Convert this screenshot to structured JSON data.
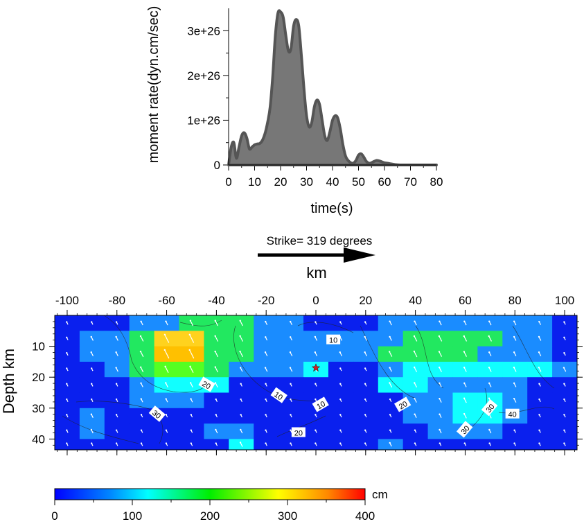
{
  "chart_data": [
    {
      "type": "area",
      "xlabel": "time(s)",
      "ylabel": "moment rate(dyn.cm/sec)",
      "xlim": [
        0,
        80
      ],
      "ylim": [
        0,
        3.5e+26
      ],
      "xticks": [
        "0",
        "10",
        "20",
        "30",
        "40",
        "50",
        "60",
        "70",
        "80"
      ],
      "yticks": [
        "0",
        "1e+26",
        "2e+26",
        "3e+26"
      ],
      "fill_color": "#777777",
      "line_color": "#555555",
      "x": [
        0,
        1,
        2,
        3,
        4,
        5,
        6,
        7,
        8,
        9,
        10,
        11,
        12,
        13,
        14,
        15,
        16,
        17,
        18,
        19,
        20,
        21,
        22,
        23,
        24,
        25,
        26,
        27,
        28,
        29,
        30,
        31,
        32,
        33,
        34,
        35,
        36,
        37,
        38,
        39,
        40,
        41,
        42,
        43,
        44,
        45,
        46,
        47,
        48,
        49,
        50,
        51,
        52,
        53,
        54,
        55,
        56,
        57,
        58,
        59,
        60,
        62,
        64,
        66,
        68,
        70,
        80
      ],
      "y": [
        0,
        4e+25,
        5e+25,
        1.5e+25,
        4e+25,
        6.5e+25,
        7.2e+25,
        6e+25,
        3.6e+25,
        4e+25,
        4.5e+25,
        4.7e+25,
        4.8e+25,
        5.5e+25,
        7e+25,
        9.5e+25,
        1.3e+26,
        2e+26,
        2.9e+26,
        3.4e+26,
        3.42e+26,
        3.3e+26,
        2.9e+26,
        2.55e+26,
        2.6e+26,
        3.1e+26,
        3.25e+26,
        3.1e+26,
        2.45e+26,
        1.7e+26,
        1.1e+26,
        8.5e+25,
        9.5e+25,
        1.3e+26,
        1.45e+26,
        1.35e+26,
        1e+26,
        6.5e+25,
        5.5e+25,
        7.5e+25,
        1e+26,
        1.1e+26,
        1.05e+26,
        8e+25,
        4.5e+25,
        2e+25,
        1e+25,
        5e+24,
        4e+24,
        1e+25,
        2.2e+25,
        2.5e+25,
        1.8e+25,
        8e+24,
        4e+24,
        5e+24,
        8e+24,
        1e+25,
        9e+24,
        7e+24,
        5e+24,
        3e+24,
        1e+24,
        0.0,
        0.0,
        0.0,
        0.0
      ]
    },
    {
      "type": "heatmap",
      "title": "Strike= 319 degrees",
      "xlabel": "km",
      "ylabel": "Depth km",
      "colorbar_label": "cm",
      "colorbar_ticks": [
        "0",
        "100",
        "200",
        "300",
        "400"
      ],
      "colorbar_range": [
        0,
        400
      ],
      "xlim": [
        -105,
        105
      ],
      "ylim": [
        43.5,
        0
      ],
      "xticks": [
        "-100",
        "-80",
        "-60",
        "-40",
        "-20",
        "0",
        "20",
        "40",
        "60",
        "80",
        "100"
      ],
      "yticks": [
        "10",
        "20",
        "30",
        "40"
      ],
      "hypocenter": {
        "x": 0,
        "y": 17,
        "color": "#cc2222"
      },
      "contour_labels": [
        "10",
        "20",
        "30",
        "10",
        "10",
        "20",
        "20",
        "30",
        "40",
        "30"
      ],
      "cell_size_km": [
        10,
        5
      ],
      "rows": [
        [
          20,
          20,
          20,
          65,
          75,
          130,
          130,
          130,
          50,
          50,
          20,
          20,
          20,
          75,
          75,
          75,
          75,
          75,
          75,
          45,
          20
        ],
        [
          20,
          75,
          75,
          135,
          260,
          260,
          145,
          145,
          50,
          50,
          75,
          75,
          75,
          75,
          135,
          135,
          135,
          135,
          75,
          75,
          20
        ],
        [
          20,
          75,
          75,
          140,
          275,
          275,
          145,
          145,
          75,
          75,
          75,
          75,
          75,
          125,
          150,
          125,
          125,
          75,
          75,
          75,
          20
        ],
        [
          20,
          20,
          75,
          120,
          175,
          175,
          130,
          75,
          75,
          75,
          105,
          20,
          20,
          75,
          110,
          105,
          95,
          95,
          95,
          95,
          75
        ],
        [
          20,
          20,
          20,
          75,
          100,
          100,
          100,
          20,
          20,
          20,
          20,
          20,
          20,
          100,
          100,
          75,
          75,
          75,
          75,
          20,
          20
        ],
        [
          20,
          20,
          20,
          50,
          50,
          50,
          20,
          20,
          20,
          20,
          20,
          20,
          20,
          20,
          75,
          75,
          100,
          100,
          75,
          20,
          20
        ],
        [
          20,
          60,
          20,
          20,
          20,
          20,
          20,
          20,
          20,
          20,
          20,
          20,
          20,
          20,
          60,
          60,
          100,
          100,
          60,
          20,
          20
        ],
        [
          20,
          60,
          20,
          20,
          20,
          20,
          60,
          60,
          20,
          20,
          20,
          20,
          20,
          20,
          20,
          60,
          60,
          60,
          20,
          20,
          20
        ],
        [
          20,
          20,
          20,
          20,
          20,
          20,
          20,
          90,
          20,
          20,
          20,
          20,
          20,
          60,
          20,
          20,
          20,
          20,
          20,
          20,
          20
        ]
      ]
    }
  ]
}
